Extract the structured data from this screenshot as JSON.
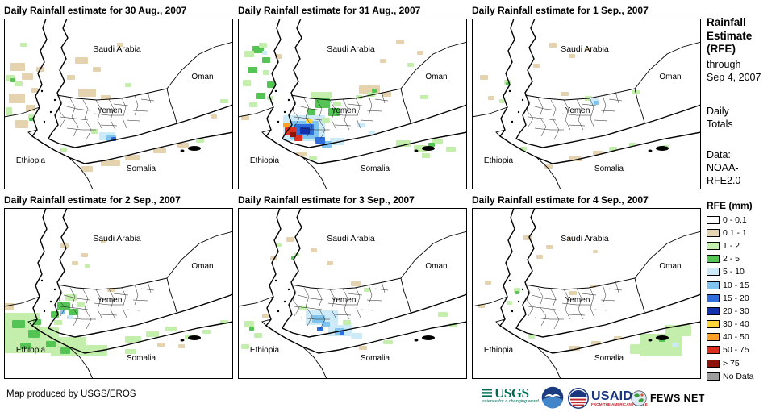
{
  "panels": [
    {
      "title": "Daily Rainfall estimate for 30 Aug., 2007",
      "rain": [
        [
          8,
          55,
          18,
          10,
          "t"
        ],
        [
          22,
          68,
          14,
          8,
          "t"
        ],
        [
          6,
          93,
          20,
          12,
          "t"
        ],
        [
          27,
          107,
          12,
          8,
          "t"
        ],
        [
          14,
          126,
          16,
          10,
          "t"
        ],
        [
          40,
          60,
          10,
          6,
          "t"
        ],
        [
          34,
          86,
          8,
          6,
          "t"
        ],
        [
          2,
          70,
          12,
          8,
          "g1"
        ],
        [
          13,
          78,
          10,
          6,
          "g1"
        ],
        [
          30,
          119,
          9,
          6,
          "g1"
        ],
        [
          2,
          110,
          8,
          10,
          "g1"
        ],
        [
          20,
          30,
          8,
          5,
          "g1"
        ],
        [
          8,
          74,
          6,
          5,
          "g2"
        ],
        [
          31,
          123,
          5,
          4,
          "g2"
        ],
        [
          88,
          48,
          16,
          8,
          "t"
        ],
        [
          110,
          60,
          10,
          6,
          "t"
        ],
        [
          140,
          30,
          8,
          5,
          "t"
        ],
        [
          78,
          70,
          10,
          6,
          "t"
        ],
        [
          92,
          87,
          22,
          10,
          "t"
        ],
        [
          120,
          95,
          12,
          6,
          "t"
        ],
        [
          150,
          80,
          8,
          5,
          "g1"
        ],
        [
          108,
          137,
          9,
          6,
          "g1"
        ],
        [
          118,
          141,
          20,
          10,
          "b1"
        ],
        [
          127,
          145,
          12,
          7,
          "b2"
        ],
        [
          133,
          147,
          6,
          5,
          "b3"
        ],
        [
          120,
          175,
          24,
          8,
          "t"
        ],
        [
          150,
          169,
          18,
          7,
          "t"
        ],
        [
          185,
          161,
          16,
          6,
          "t"
        ],
        [
          215,
          154,
          14,
          6,
          "t"
        ],
        [
          96,
          183,
          14,
          7,
          "t"
        ],
        [
          238,
          149,
          10,
          5,
          "g1"
        ],
        [
          70,
          160,
          8,
          5,
          "g1"
        ],
        [
          268,
          100,
          10,
          5,
          "g1"
        ],
        [
          256,
          119,
          8,
          5,
          "t"
        ]
      ]
    },
    {
      "title": "Daily Rainfall estimate for 31 Aug., 2007",
      "rain": [
        [
          18,
          34,
          14,
          9,
          "g2"
        ],
        [
          30,
          48,
          10,
          7,
          "g2"
        ],
        [
          12,
          60,
          12,
          8,
          "g2"
        ],
        [
          36,
          78,
          10,
          8,
          "g2"
        ],
        [
          22,
          92,
          12,
          8,
          "g2"
        ],
        [
          8,
          40,
          12,
          8,
          "g1"
        ],
        [
          26,
          30,
          10,
          6,
          "g1"
        ],
        [
          6,
          76,
          10,
          8,
          "g1"
        ],
        [
          31,
          64,
          8,
          6,
          "g1"
        ],
        [
          14,
          104,
          10,
          6,
          "g1"
        ],
        [
          36,
          96,
          8,
          5,
          "g1"
        ],
        [
          46,
          44,
          8,
          6,
          "t"
        ],
        [
          4,
          120,
          10,
          6,
          "t"
        ],
        [
          30,
          40,
          6,
          5,
          "b1"
        ],
        [
          196,
          26,
          10,
          6,
          "t"
        ],
        [
          222,
          40,
          8,
          5,
          "t"
        ],
        [
          176,
          50,
          8,
          5,
          "t"
        ],
        [
          210,
          55,
          8,
          5,
          "g1"
        ],
        [
          56,
          120,
          52,
          32,
          "b1"
        ],
        [
          114,
          148,
          18,
          9,
          "b1"
        ],
        [
          64,
          127,
          36,
          22,
          "b2"
        ],
        [
          104,
          152,
          12,
          8,
          "b2"
        ],
        [
          70,
          131,
          24,
          14,
          "b3"
        ],
        [
          96,
          147,
          12,
          8,
          "b3"
        ],
        [
          77,
          135,
          12,
          8,
          "b4"
        ],
        [
          84,
          125,
          8,
          5,
          "y"
        ],
        [
          56,
          129,
          8,
          6,
          "o"
        ],
        [
          58,
          135,
          14,
          10,
          "r"
        ],
        [
          70,
          145,
          10,
          7,
          "r"
        ],
        [
          64,
          141,
          8,
          6,
          "rr"
        ],
        [
          96,
          99,
          18,
          12,
          "g2"
        ],
        [
          112,
          111,
          14,
          10,
          "g2"
        ],
        [
          86,
          112,
          10,
          8,
          "g2"
        ],
        [
          90,
          91,
          26,
          8,
          "g1"
        ],
        [
          118,
          103,
          10,
          6,
          "g1"
        ],
        [
          104,
          123,
          10,
          6,
          "g1"
        ],
        [
          150,
          83,
          26,
          10,
          "t"
        ],
        [
          178,
          91,
          12,
          6,
          "t"
        ],
        [
          160,
          91,
          10,
          6,
          "g1"
        ],
        [
          146,
          95,
          8,
          5,
          "g1"
        ],
        [
          166,
          87,
          6,
          5,
          "g2"
        ],
        [
          148,
          129,
          10,
          6,
          "b1"
        ],
        [
          162,
          139,
          8,
          5,
          "b1"
        ],
        [
          226,
          95,
          10,
          5,
          "g1"
        ],
        [
          196,
          151,
          18,
          8,
          "g1"
        ],
        [
          218,
          157,
          16,
          8,
          "g1"
        ],
        [
          240,
          149,
          14,
          7,
          "g1"
        ],
        [
          258,
          159,
          12,
          6,
          "g1"
        ],
        [
          228,
          167,
          10,
          6,
          "g1"
        ],
        [
          236,
          154,
          8,
          5,
          "g2"
        ],
        [
          72,
          165,
          14,
          6,
          "t"
        ],
        [
          88,
          171,
          10,
          5,
          "g1"
        ]
      ]
    },
    {
      "title": "Daily Rainfall estimate for 1 Sep., 2007",
      "rain": [
        [
          96,
          30,
          10,
          6,
          "t"
        ],
        [
          120,
          44,
          8,
          5,
          "t"
        ],
        [
          76,
          56,
          8,
          5,
          "t"
        ],
        [
          140,
          36,
          6,
          4,
          "t"
        ],
        [
          10,
          70,
          10,
          6,
          "t"
        ],
        [
          20,
          96,
          8,
          5,
          "t"
        ],
        [
          40,
          76,
          8,
          6,
          "g1"
        ],
        [
          34,
          100,
          6,
          5,
          "g1"
        ],
        [
          42,
          79,
          4,
          4,
          "g2"
        ],
        [
          140,
          96,
          9,
          6,
          "g1"
        ],
        [
          146,
          99,
          12,
          8,
          "b1"
        ],
        [
          151,
          102,
          6,
          5,
          "b2"
        ],
        [
          198,
          89,
          10,
          5,
          "g1"
        ],
        [
          110,
          91,
          10,
          5,
          "t"
        ],
        [
          120,
          171,
          16,
          6,
          "t"
        ],
        [
          150,
          164,
          12,
          5,
          "t"
        ],
        [
          170,
          159,
          10,
          5,
          "g1"
        ],
        [
          195,
          154,
          8,
          5,
          "g1"
        ],
        [
          90,
          181,
          10,
          5,
          "t"
        ],
        [
          60,
          159,
          8,
          5,
          "g1"
        ],
        [
          236,
          157,
          8,
          4,
          "g1"
        ]
      ]
    },
    {
      "title": "Daily Rainfall estimate for 2 Sep., 2007",
      "rain": [
        [
          0,
          130,
          44,
          50,
          "g1"
        ],
        [
          34,
          148,
          34,
          32,
          "g1"
        ],
        [
          58,
          160,
          44,
          24,
          "g1"
        ],
        [
          96,
          170,
          32,
          14,
          "g1"
        ],
        [
          10,
          139,
          16,
          10,
          "g2"
        ],
        [
          30,
          151,
          14,
          10,
          "g2"
        ],
        [
          52,
          165,
          12,
          8,
          "g2"
        ],
        [
          20,
          167,
          14,
          8,
          "g2"
        ],
        [
          70,
          173,
          12,
          8,
          "g2"
        ],
        [
          36,
          138,
          10,
          7,
          "g2"
        ],
        [
          0,
          118,
          12,
          8,
          "t"
        ],
        [
          66,
          117,
          16,
          10,
          "g2"
        ],
        [
          80,
          125,
          12,
          8,
          "g2"
        ],
        [
          58,
          128,
          10,
          8,
          "g2"
        ],
        [
          76,
          107,
          14,
          8,
          "g1"
        ],
        [
          90,
          117,
          10,
          6,
          "g1"
        ],
        [
          62,
          139,
          10,
          6,
          "g1"
        ],
        [
          70,
          127,
          6,
          5,
          "b2"
        ],
        [
          78,
          133,
          8,
          5,
          "b1"
        ],
        [
          70,
          44,
          10,
          6,
          "t"
        ],
        [
          96,
          56,
          8,
          5,
          "t"
        ],
        [
          120,
          40,
          6,
          4,
          "t"
        ],
        [
          84,
          66,
          8,
          5,
          "t"
        ],
        [
          100,
          70,
          6,
          4,
          "g1"
        ],
        [
          128,
          99,
          10,
          5,
          "t"
        ],
        [
          150,
          159,
          20,
          8,
          "g1"
        ],
        [
          176,
          153,
          16,
          7,
          "g1"
        ],
        [
          200,
          147,
          14,
          6,
          "g1"
        ],
        [
          224,
          157,
          12,
          6,
          "g1"
        ],
        [
          150,
          175,
          14,
          6,
          "g1"
        ],
        [
          246,
          151,
          10,
          5,
          "g1"
        ],
        [
          190,
          167,
          10,
          5,
          "t"
        ],
        [
          216,
          169,
          8,
          5,
          "t"
        ],
        [
          268,
          139,
          10,
          5,
          "g1"
        ]
      ]
    },
    {
      "title": "Daily Rainfall estimate for 3 Sep., 2007",
      "rain": [
        [
          84,
          127,
          40,
          18,
          "b1"
        ],
        [
          112,
          145,
          30,
          14,
          "b1"
        ],
        [
          140,
          155,
          14,
          7,
          "b1"
        ],
        [
          92,
          133,
          16,
          9,
          "b2"
        ],
        [
          120,
          149,
          12,
          8,
          "b2"
        ],
        [
          104,
          141,
          10,
          6,
          "b2"
        ],
        [
          98,
          147,
          8,
          6,
          "b3"
        ],
        [
          126,
          153,
          6,
          5,
          "b3"
        ],
        [
          76,
          121,
          10,
          6,
          "g1"
        ],
        [
          130,
          139,
          10,
          6,
          "g1"
        ],
        [
          60,
          36,
          10,
          6,
          "t"
        ],
        [
          90,
          50,
          8,
          5,
          "t"
        ],
        [
          40,
          60,
          8,
          5,
          "t"
        ],
        [
          110,
          66,
          8,
          5,
          "t"
        ],
        [
          30,
          131,
          8,
          5,
          "t"
        ],
        [
          70,
          56,
          6,
          4,
          "g1"
        ],
        [
          48,
          44,
          6,
          4,
          "g1"
        ],
        [
          66,
          60,
          4,
          4,
          "g2"
        ],
        [
          8,
          140,
          12,
          8,
          "g1"
        ],
        [
          20,
          155,
          10,
          6,
          "g1"
        ],
        [
          4,
          169,
          10,
          6,
          "g1"
        ],
        [
          14,
          147,
          6,
          5,
          "g2"
        ],
        [
          140,
          91,
          12,
          6,
          "t"
        ],
        [
          156,
          99,
          8,
          5,
          "g1"
        ],
        [
          248,
          129,
          12,
          6,
          "g1"
        ],
        [
          262,
          143,
          10,
          5,
          "g1"
        ],
        [
          180,
          164,
          12,
          5,
          "g1"
        ],
        [
          150,
          171,
          10,
          5,
          "t"
        ]
      ]
    },
    {
      "title": "Daily Rainfall estimate for 4 Sep., 2007",
      "rain": [
        [
          64,
          34,
          10,
          6,
          "t"
        ],
        [
          92,
          46,
          8,
          5,
          "t"
        ],
        [
          118,
          36,
          6,
          4,
          "t"
        ],
        [
          150,
          52,
          6,
          4,
          "t"
        ],
        [
          80,
          58,
          8,
          5,
          "t"
        ],
        [
          52,
          99,
          8,
          6,
          "g1"
        ],
        [
          44,
          115,
          6,
          5,
          "g1"
        ],
        [
          54,
          103,
          4,
          4,
          "g2"
        ],
        [
          16,
          90,
          8,
          5,
          "t"
        ],
        [
          8,
          119,
          8,
          5,
          "t"
        ],
        [
          120,
          103,
          10,
          5,
          "t"
        ],
        [
          146,
          95,
          8,
          4,
          "t"
        ],
        [
          208,
          156,
          52,
          28,
          "g1"
        ],
        [
          240,
          145,
          32,
          14,
          "g1"
        ],
        [
          196,
          169,
          24,
          12,
          "g1"
        ],
        [
          248,
          167,
          8,
          5,
          "b1"
        ],
        [
          232,
          161,
          8,
          5,
          "g2"
        ],
        [
          120,
          171,
          14,
          6,
          "t"
        ],
        [
          148,
          165,
          12,
          5,
          "t"
        ],
        [
          176,
          159,
          10,
          5,
          "t"
        ],
        [
          70,
          157,
          8,
          5,
          "g1"
        ]
      ]
    }
  ],
  "map": {
    "labels": [
      "Saudi Arabia",
      "Oman",
      "Yemen",
      "Ethiopia",
      "Somalia"
    ]
  },
  "sidebar": {
    "title": "Rainfall\nEstimate\n(RFE)",
    "through": "through\nSep 4, 2007",
    "daily_totals": "Daily\nTotals",
    "data_source": "Data:\nNOAA-\nRFE2.0",
    "legend_title": "RFE (mm)",
    "legend": [
      {
        "label": "0 - 0.1",
        "key": "w"
      },
      {
        "label": "0.1 - 1",
        "key": "t"
      },
      {
        "label": "1 - 2",
        "key": "g1"
      },
      {
        "label": "2 - 5",
        "key": "g2"
      },
      {
        "label": "5 - 10",
        "key": "b1"
      },
      {
        "label": "10 - 15",
        "key": "b2"
      },
      {
        "label": "15 - 20",
        "key": "b3"
      },
      {
        "label": "20 - 30",
        "key": "b4"
      },
      {
        "label": "30 - 40",
        "key": "y"
      },
      {
        "label": "40 - 50",
        "key": "o"
      },
      {
        "label": "50 - 75",
        "key": "r"
      },
      {
        "label": "> 75",
        "key": "rr"
      },
      {
        "label": "No Data",
        "key": "nd"
      }
    ]
  },
  "palette": {
    "w": "#FFFFFF",
    "t": "#E4D3AE",
    "g1": "#C4EEAC",
    "g2": "#54C554",
    "b1": "#CDEAF8",
    "b2": "#7FC4EE",
    "b3": "#2E6EDC",
    "b4": "#1232B0",
    "y": "#FFD73C",
    "o": "#FF9F23",
    "r": "#DD2F1D",
    "rr": "#8C1309",
    "nd": "#9C9C9C"
  },
  "footer": {
    "credit": "Map produced by USGS/EROS"
  },
  "logos": {
    "usgs": "USGS",
    "usgs_tagline": "science for a changing world",
    "usaid": "USAID",
    "usaid_tagline": "FROM THE AMERICAN PEOPLE",
    "fewsnet": "FEWS NET"
  }
}
